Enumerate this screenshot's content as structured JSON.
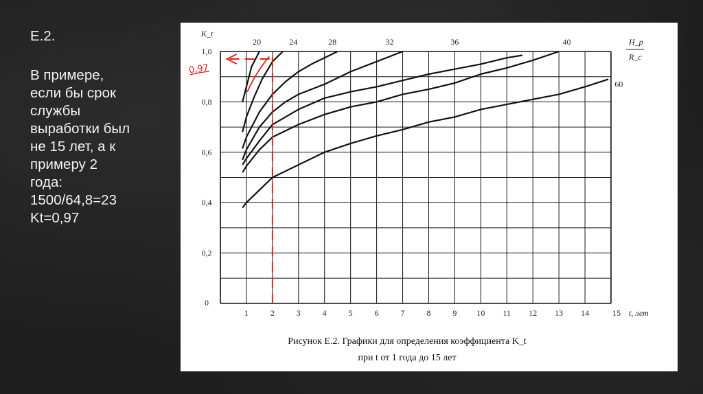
{
  "slide": {
    "heading": "Е.2.",
    "lines": [
      "В примере,",
      "если бы срок",
      "службы",
      "выработки был",
      "не 15 лет, а к",
      "примеру 2",
      "года:",
      "1500/64,8=23",
      "Kt=0,97"
    ]
  },
  "colors": {
    "background": "#1e1e1e",
    "slide_text": "#f2f2f2",
    "grid": "#111111",
    "annotation": "#e0201a"
  },
  "chart_data": {
    "type": "line",
    "title": "Рисунок Е.2. Графики для определения коэффициента K_t",
    "subtitle": "при t от 1 года до 15 лет",
    "ylabel": "K_t",
    "xlabel": "t, лет",
    "xlim": [
      0,
      15
    ],
    "ylim": [
      0,
      1.0
    ],
    "x_ticks": [
      1,
      2,
      3,
      4,
      5,
      6,
      7,
      8,
      9,
      10,
      11,
      12,
      13,
      14,
      15
    ],
    "y_ticks": [
      {
        "value": 0,
        "label": "0"
      },
      {
        "value": 0.2,
        "label": "0,2"
      },
      {
        "value": 0.4,
        "label": "0,4"
      },
      {
        "value": 0.6,
        "label": "0,6"
      },
      {
        "value": 0.8,
        "label": "0,8"
      },
      {
        "value": 1.0,
        "label": "1,0"
      }
    ],
    "grid": true,
    "legend_title": {
      "numerator": "H_p",
      "denominator": "R_c"
    },
    "series": [
      {
        "name": "20",
        "label_x": 1.4,
        "x": [
          0.85,
          1.0,
          1.2,
          1.5
        ],
        "y": [
          0.8,
          0.86,
          0.94,
          1.0
        ]
      },
      {
        "name": "24",
        "label_x": 2.8,
        "x": [
          0.85,
          1.0,
          1.3,
          1.6,
          2.0,
          2.4
        ],
        "y": [
          0.68,
          0.74,
          0.82,
          0.89,
          0.96,
          1.0
        ]
      },
      {
        "name": "28",
        "label_x": 4.3,
        "x": [
          0.85,
          1.0,
          1.5,
          2.0,
          2.5,
          3.0,
          3.5,
          4.0,
          4.5
        ],
        "y": [
          0.615,
          0.66,
          0.76,
          0.83,
          0.88,
          0.92,
          0.95,
          0.975,
          1.0
        ]
      },
      {
        "name": "32",
        "label_x": 6.5,
        "x": [
          0.85,
          1.0,
          1.5,
          2.0,
          2.5,
          3.0,
          4.0,
          5.0,
          6.0,
          7.0
        ],
        "y": [
          0.57,
          0.61,
          0.7,
          0.76,
          0.8,
          0.83,
          0.87,
          0.92,
          0.96,
          1.0
        ]
      },
      {
        "name": "36",
        "label_x": 9.0,
        "x": [
          0.85,
          1.0,
          1.5,
          2.0,
          3.0,
          4.0,
          5.0,
          6.0,
          7.0,
          8.0,
          9.0,
          10.0,
          11.0,
          11.6
        ],
        "y": [
          0.55,
          0.575,
          0.645,
          0.71,
          0.77,
          0.815,
          0.84,
          0.86,
          0.885,
          0.91,
          0.93,
          0.95,
          0.975,
          0.985
        ]
      },
      {
        "name": "40",
        "label_x": 13.3,
        "x": [
          0.85,
          1.0,
          1.5,
          2.0,
          3.0,
          4.0,
          5.0,
          6.0,
          7.0,
          8.0,
          9.0,
          10.0,
          11.0,
          12.0,
          13.0
        ],
        "y": [
          0.52,
          0.545,
          0.61,
          0.66,
          0.71,
          0.75,
          0.78,
          0.8,
          0.83,
          0.85,
          0.875,
          0.91,
          0.935,
          0.965,
          1.0
        ]
      },
      {
        "name": "60",
        "label_x": 15.3,
        "x": [
          0.85,
          1.0,
          1.5,
          2.0,
          3.0,
          4.0,
          5.0,
          6.0,
          7.0,
          8.0,
          9.0,
          10.0,
          11.0,
          12.0,
          13.0,
          14.0,
          14.9
        ],
        "y": [
          0.38,
          0.4,
          0.45,
          0.5,
          0.55,
          0.6,
          0.635,
          0.665,
          0.69,
          0.72,
          0.74,
          0.77,
          0.79,
          0.81,
          0.83,
          0.86,
          0.89
        ]
      }
    ],
    "annotations": [
      {
        "type": "vertical-dashed",
        "x": 2,
        "y_from": 0,
        "y_to": 0.99
      },
      {
        "type": "horizontal-dashed-arrow",
        "y": 0.97,
        "x_from": 0.2,
        "x_to": 2
      },
      {
        "type": "hand-label",
        "text": "0,97",
        "y": 0.93
      },
      {
        "type": "hand-arc",
        "x": 1.3,
        "y_from": 0.84,
        "y_to": 0.98
      }
    ]
  }
}
